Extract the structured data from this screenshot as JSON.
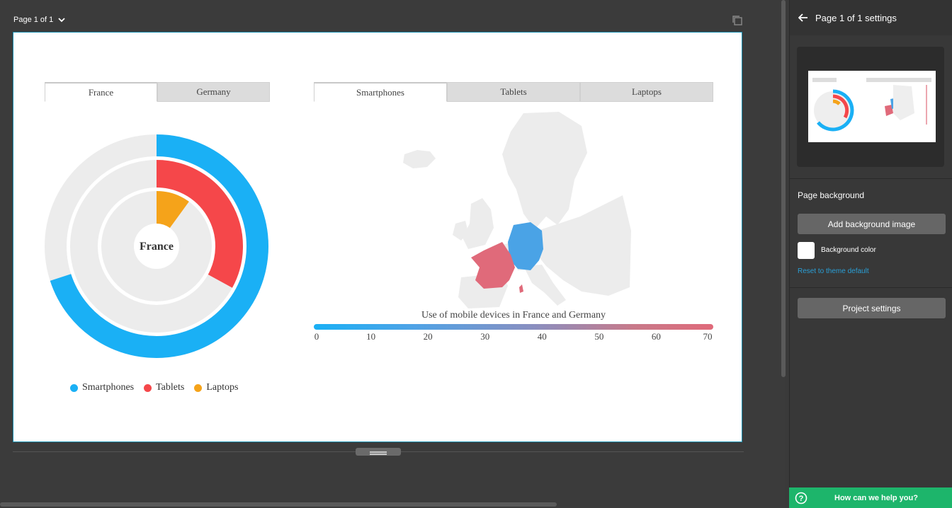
{
  "workspace": {
    "page_selector": "Page 1 of 1"
  },
  "donut": {
    "tabs": [
      {
        "label": "France",
        "active": true
      },
      {
        "label": "Germany",
        "active": false
      }
    ],
    "center_label": "France",
    "legend": [
      {
        "label": "Smartphones",
        "color": "#1ab0f5"
      },
      {
        "label": "Tablets",
        "color": "#f5474a"
      },
      {
        "label": "Laptops",
        "color": "#f5a31a"
      }
    ]
  },
  "map": {
    "tabs": [
      {
        "label": "Smartphones",
        "active": true
      },
      {
        "label": "Tablets",
        "active": false
      },
      {
        "label": "Laptops",
        "active": false
      }
    ],
    "title": "Use of mobile devices in France and Germany",
    "scale_ticks": [
      "0",
      "10",
      "20",
      "30",
      "40",
      "50",
      "60",
      "70"
    ],
    "country_colors": {
      "France": "#e06a7a",
      "Germany": "#4aa3e6"
    }
  },
  "chart_data": [
    {
      "type": "donut",
      "title": "France",
      "series": [
        {
          "name": "Smartphones",
          "value": 70,
          "max": 100,
          "color": "#1ab0f5"
        },
        {
          "name": "Tablets",
          "value": 33,
          "max": 100,
          "color": "#f5474a"
        },
        {
          "name": "Laptops",
          "value": 10,
          "max": 100,
          "color": "#f5a31a"
        }
      ]
    },
    {
      "type": "choropleth",
      "title": "Use of mobile devices in France and Germany",
      "scale": [
        0,
        70
      ],
      "regions": [
        {
          "name": "France",
          "color": "#e06a7a"
        },
        {
          "name": "Germany",
          "color": "#4aa3e6"
        }
      ]
    }
  ],
  "panel": {
    "title": "Page 1 of 1 settings",
    "background_label": "Page background",
    "add_bg_button": "Add background image",
    "bg_color_label": "Background color",
    "reset_link": "Reset to theme default",
    "project_button": "Project settings",
    "help": "How can we help you?"
  }
}
